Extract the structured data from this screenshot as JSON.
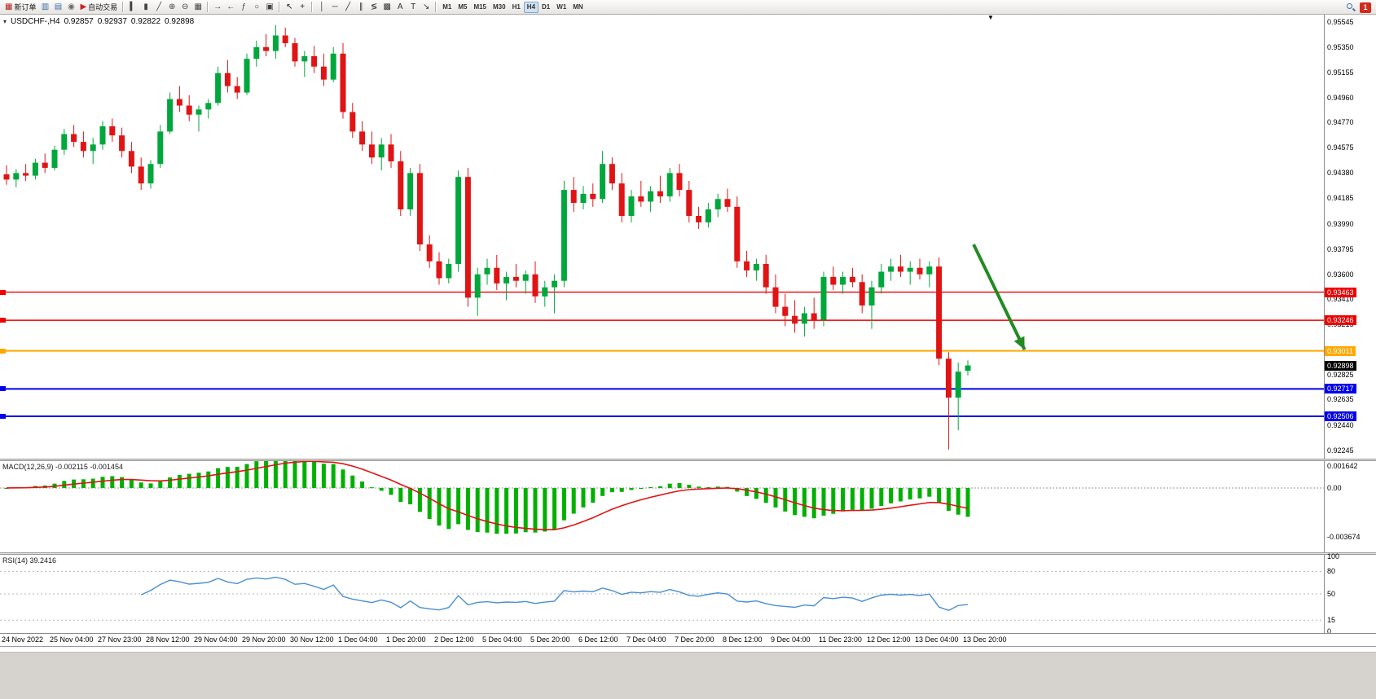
{
  "toolbar": {
    "groups": [
      {
        "items": [
          {
            "name": "new-order-button",
            "glyph": "▦",
            "glyph_color": "#b02020",
            "label": "新订单"
          },
          {
            "name": "new-chart-button",
            "glyph": "▥",
            "glyph_color": "#3a6ea5"
          },
          {
            "name": "profiles-button",
            "glyph": "▤",
            "glyph_color": "#3a6ea5"
          },
          {
            "name": "alerts-button",
            "glyph": "◉",
            "glyph_color": "#6a6a6a"
          },
          {
            "name": "autotrade-button",
            "glyph": "▶",
            "glyph_color": "#cc2222",
            "label": "自动交易"
          }
        ]
      },
      {
        "items": [
          {
            "name": "bar-chart-button",
            "glyph": "▍",
            "glyph_color": "#444"
          },
          {
            "name": "candlestick-chart-button",
            "glyph": "▮",
            "glyph_color": "#444"
          },
          {
            "name": "line-chart-button",
            "glyph": "╱",
            "glyph_color": "#444"
          },
          {
            "name": "zoom-in-button",
            "glyph": "⊕",
            "glyph_color": "#444"
          },
          {
            "name": "zoom-out-button",
            "glyph": "⊖",
            "glyph_color": "#444"
          },
          {
            "name": "tile-windows-button",
            "glyph": "▦",
            "glyph_color": "#444"
          }
        ]
      },
      {
        "items": [
          {
            "name": "auto-scroll-button",
            "glyph": "→",
            "glyph_color": "#444"
          },
          {
            "name": "chart-shift-button",
            "glyph": "←",
            "glyph_color": "#444"
          },
          {
            "name": "indicators-button",
            "glyph": "ƒ",
            "glyph_color": "#444"
          },
          {
            "name": "periods-dropdown",
            "glyph": "○",
            "glyph_color": "#444"
          },
          {
            "name": "templates-dropdown",
            "glyph": "▣",
            "glyph_color": "#444"
          }
        ]
      },
      {
        "items": [
          {
            "name": "cursor-tool",
            "glyph": "↖",
            "glyph_color": "#222"
          },
          {
            "name": "crosshair-tool",
            "glyph": "+",
            "glyph_color": "#222"
          }
        ]
      },
      {
        "items": [
          {
            "name": "vertical-line-tool",
            "glyph": "│",
            "glyph_color": "#333"
          },
          {
            "name": "horizontal-line-tool",
            "glyph": "─",
            "glyph_color": "#333"
          },
          {
            "name": "trendline-tool",
            "glyph": "╱",
            "glyph_color": "#333"
          },
          {
            "name": "channel-tool",
            "glyph": "∥",
            "glyph_color": "#333"
          },
          {
            "name": "fibonacci-tool",
            "glyph": "≶",
            "glyph_color": "#333"
          },
          {
            "name": "grid-tool",
            "glyph": "▩",
            "glyph_color": "#333"
          },
          {
            "name": "text-tool",
            "glyph": "A",
            "glyph_color": "#333"
          },
          {
            "name": "text-label-tool",
            "glyph": "T",
            "glyph_color": "#333"
          },
          {
            "name": "arrows-tool",
            "glyph": "↘",
            "glyph_color": "#333"
          }
        ]
      }
    ],
    "timeframes": {
      "items": [
        "M1",
        "M5",
        "M15",
        "M30",
        "H1",
        "H4",
        "D1",
        "W1",
        "MN"
      ],
      "active": "H4"
    },
    "notification_badge": "1"
  },
  "chart": {
    "collapse_icon": "▾",
    "symbol_label": "USDCHF-,H4",
    "ohlc": {
      "open": "0.92857",
      "high": "0.92937",
      "low": "0.92822",
      "close": "0.92898"
    },
    "price_axis_ticks": [
      "0.95545",
      "0.95350",
      "0.95155",
      "0.94960",
      "0.94770",
      "0.94575",
      "0.94380",
      "0.94185",
      "0.93990",
      "0.93795",
      "0.93600",
      "0.93410",
      "0.93215",
      "0.92825",
      "0.92635",
      "0.92440",
      "0.92245"
    ],
    "levels": [
      {
        "value": 0.93463,
        "label": "0.93463",
        "color": "#ee0000",
        "width": 1.4
      },
      {
        "value": 0.93246,
        "label": "0.93246",
        "color": "#ee0000",
        "width": 1.4
      },
      {
        "value": 0.93011,
        "label": "0.93011",
        "color": "#ffa800",
        "width": 2
      },
      {
        "value": 0.92717,
        "label": "0.92717",
        "color": "#0000ee",
        "width": 2
      },
      {
        "value": 0.92506,
        "label": "0.92506",
        "color": "#0000ee",
        "width": 2
      }
    ],
    "current_price_tag": {
      "text": "0.92898",
      "color": "#000000",
      "value": 0.92898
    },
    "shift_marker": "▼",
    "arrow": {
      "from_index": 100.6,
      "from_price": 0.9383,
      "to_index": 105.9,
      "to_price": 0.9302,
      "color": "#228b22"
    },
    "label_every": 5,
    "time_labels": [
      "24 Nov 2022",
      "25 Nov 04:00",
      "27 Nov 23:00",
      "28 Nov 12:00",
      "29 Nov 04:00",
      "29 Nov 20:00",
      "30 Nov 12:00",
      "1 Dec 04:00",
      "1 Dec 20:00",
      "2 Dec 12:00",
      "5 Dec 04:00",
      "5 Dec 20:00",
      "6 Dec 12:00",
      "7 Dec 04:00",
      "7 Dec 20:00",
      "8 Dec 12:00",
      "9 Dec 04:00",
      "11 Dec 23:00",
      "12 Dec 12:00",
      "13 Dec 04:00",
      "13 Dec 20:00"
    ]
  },
  "macd": {
    "label": "MACD(12,26,9)",
    "values_text": "-0.002115 -0.001454",
    "ticks": [
      {
        "v": 0.001642,
        "t": "0.001642"
      },
      {
        "v": 0,
        "t": "0.00"
      },
      {
        "v": -0.003674,
        "t": "-0.003674"
      }
    ],
    "histogram_color": "#00b000",
    "signal_color": "#e01414"
  },
  "rsi": {
    "label": "RSI(14)",
    "value_text": "39.2416",
    "ticks": [
      {
        "v": 100,
        "t": "100"
      },
      {
        "v": 80,
        "t": "80"
      },
      {
        "v": 50,
        "t": "50"
      },
      {
        "v": 15,
        "t": "15"
      },
      {
        "v": 0,
        "t": "0"
      }
    ],
    "dashed_levels": [
      80,
      50,
      15
    ],
    "line_color": "#4a8fd0"
  },
  "chart_data": {
    "type": "candlestick",
    "symbol": "USDCHF",
    "timeframe": "H4",
    "up_color": "#00a73c",
    "down_color": "#e01414",
    "price_range": {
      "max": 0.956,
      "min": 0.9218
    },
    "indicators": [
      {
        "name": "MACD",
        "params": [
          12,
          26,
          9
        ],
        "display_values": [
          -0.002115,
          -0.001454
        ]
      },
      {
        "name": "RSI",
        "params": [
          14
        ],
        "display_value": 39.2416
      }
    ],
    "candles": [
      [
        0.9437,
        0.9444,
        0.9429,
        0.9433
      ],
      [
        0.9433,
        0.9441,
        0.9427,
        0.9438
      ],
      [
        0.9438,
        0.9445,
        0.9432,
        0.9436
      ],
      [
        0.9436,
        0.9449,
        0.9433,
        0.9446
      ],
      [
        0.9446,
        0.9453,
        0.9438,
        0.9442
      ],
      [
        0.9442,
        0.9459,
        0.944,
        0.9456
      ],
      [
        0.9456,
        0.9472,
        0.9452,
        0.9468
      ],
      [
        0.9468,
        0.9475,
        0.9458,
        0.9462
      ],
      [
        0.9462,
        0.947,
        0.945,
        0.9455
      ],
      [
        0.9455,
        0.9465,
        0.9445,
        0.946
      ],
      [
        0.946,
        0.9478,
        0.9456,
        0.9474
      ],
      [
        0.9474,
        0.948,
        0.9462,
        0.9467
      ],
      [
        0.9467,
        0.9473,
        0.945,
        0.9455
      ],
      [
        0.9455,
        0.9462,
        0.9438,
        0.9443
      ],
      [
        0.9443,
        0.945,
        0.9425,
        0.943
      ],
      [
        0.943,
        0.9448,
        0.9426,
        0.9445
      ],
      [
        0.9445,
        0.9475,
        0.9442,
        0.947
      ],
      [
        0.947,
        0.95,
        0.9468,
        0.9495
      ],
      [
        0.9495,
        0.9505,
        0.9485,
        0.949
      ],
      [
        0.949,
        0.9498,
        0.9478,
        0.9483
      ],
      [
        0.9483,
        0.949,
        0.947,
        0.9487
      ],
      [
        0.9487,
        0.9495,
        0.948,
        0.9492
      ],
      [
        0.9492,
        0.952,
        0.949,
        0.9515
      ],
      [
        0.9515,
        0.9525,
        0.95,
        0.9505
      ],
      [
        0.9505,
        0.9512,
        0.9495,
        0.95
      ],
      [
        0.95,
        0.953,
        0.9498,
        0.9526
      ],
      [
        0.9526,
        0.954,
        0.952,
        0.9535
      ],
      [
        0.9535,
        0.9545,
        0.9528,
        0.9532
      ],
      [
        0.9532,
        0.9552,
        0.9526,
        0.9544
      ],
      [
        0.9544,
        0.955,
        0.9535,
        0.9538
      ],
      [
        0.9538,
        0.9542,
        0.952,
        0.9524
      ],
      [
        0.9524,
        0.9532,
        0.9512,
        0.9528
      ],
      [
        0.9528,
        0.9536,
        0.9515,
        0.952
      ],
      [
        0.952,
        0.953,
        0.9505,
        0.951
      ],
      [
        0.951,
        0.9535,
        0.9508,
        0.953
      ],
      [
        0.953,
        0.9538,
        0.948,
        0.9485
      ],
      [
        0.9485,
        0.9492,
        0.9465,
        0.947
      ],
      [
        0.947,
        0.9478,
        0.9455,
        0.946
      ],
      [
        0.946,
        0.947,
        0.9445,
        0.945
      ],
      [
        0.945,
        0.9465,
        0.944,
        0.946
      ],
      [
        0.946,
        0.9468,
        0.9442,
        0.9447
      ],
      [
        0.9447,
        0.9455,
        0.9405,
        0.941
      ],
      [
        0.941,
        0.9442,
        0.9405,
        0.9438
      ],
      [
        0.9438,
        0.9445,
        0.9378,
        0.9383
      ],
      [
        0.9383,
        0.939,
        0.9365,
        0.937
      ],
      [
        0.937,
        0.9377,
        0.9352,
        0.9357
      ],
      [
        0.9357,
        0.9372,
        0.9353,
        0.9368
      ],
      [
        0.9368,
        0.944,
        0.9362,
        0.9435
      ],
      [
        0.9435,
        0.9442,
        0.9335,
        0.9342
      ],
      [
        0.9342,
        0.9365,
        0.9328,
        0.936
      ],
      [
        0.936,
        0.9372,
        0.9352,
        0.9365
      ],
      [
        0.9365,
        0.9375,
        0.9348,
        0.9353
      ],
      [
        0.9353,
        0.9362,
        0.934,
        0.9358
      ],
      [
        0.9358,
        0.9368,
        0.935,
        0.9355
      ],
      [
        0.9355,
        0.9363,
        0.9345,
        0.936
      ],
      [
        0.936,
        0.937,
        0.9338,
        0.9343
      ],
      [
        0.9343,
        0.9355,
        0.9335,
        0.935
      ],
      [
        0.935,
        0.936,
        0.933,
        0.9355
      ],
      [
        0.9355,
        0.9432,
        0.935,
        0.9425
      ],
      [
        0.9425,
        0.9435,
        0.9408,
        0.9415
      ],
      [
        0.9415,
        0.9428,
        0.941,
        0.9422
      ],
      [
        0.9422,
        0.943,
        0.9412,
        0.9418
      ],
      [
        0.9418,
        0.9455,
        0.9415,
        0.9445
      ],
      [
        0.9445,
        0.945,
        0.9425,
        0.943
      ],
      [
        0.943,
        0.9438,
        0.94,
        0.9405
      ],
      [
        0.9405,
        0.9425,
        0.94,
        0.942
      ],
      [
        0.942,
        0.9432,
        0.9412,
        0.9416
      ],
      [
        0.9416,
        0.9428,
        0.9408,
        0.9424
      ],
      [
        0.9424,
        0.9436,
        0.9415,
        0.942
      ],
      [
        0.942,
        0.9442,
        0.9416,
        0.9438
      ],
      [
        0.9438,
        0.9445,
        0.942,
        0.9425
      ],
      [
        0.9425,
        0.9432,
        0.94,
        0.9405
      ],
      [
        0.9405,
        0.9412,
        0.9395,
        0.94
      ],
      [
        0.94,
        0.9415,
        0.9396,
        0.941
      ],
      [
        0.941,
        0.9422,
        0.9404,
        0.9418
      ],
      [
        0.9418,
        0.9426,
        0.9408,
        0.9412
      ],
      [
        0.9412,
        0.942,
        0.9365,
        0.937
      ],
      [
        0.937,
        0.9378,
        0.9358,
        0.9363
      ],
      [
        0.9363,
        0.9372,
        0.9355,
        0.9368
      ],
      [
        0.9368,
        0.9375,
        0.9345,
        0.935
      ],
      [
        0.935,
        0.936,
        0.933,
        0.9335
      ],
      [
        0.9335,
        0.9345,
        0.932,
        0.9328
      ],
      [
        0.9328,
        0.934,
        0.9315,
        0.9322
      ],
      [
        0.9322,
        0.9335,
        0.9312,
        0.933
      ],
      [
        0.933,
        0.9342,
        0.9318,
        0.9325
      ],
      [
        0.9325,
        0.9362,
        0.932,
        0.9358
      ],
      [
        0.9358,
        0.9366,
        0.9348,
        0.9352
      ],
      [
        0.9352,
        0.9362,
        0.9345,
        0.9358
      ],
      [
        0.9358,
        0.9365,
        0.935,
        0.9354
      ],
      [
        0.9354,
        0.936,
        0.933,
        0.9336
      ],
      [
        0.9336,
        0.9355,
        0.9318,
        0.935
      ],
      [
        0.935,
        0.9368,
        0.9345,
        0.9362
      ],
      [
        0.9362,
        0.9372,
        0.9355,
        0.9366
      ],
      [
        0.9366,
        0.9375,
        0.9358,
        0.9362
      ],
      [
        0.9362,
        0.937,
        0.9352,
        0.9365
      ],
      [
        0.9365,
        0.9372,
        0.9356,
        0.936
      ],
      [
        0.936,
        0.937,
        0.935,
        0.9366
      ],
      [
        0.9366,
        0.9373,
        0.929,
        0.9295
      ],
      [
        0.9295,
        0.93,
        0.9225,
        0.9265
      ],
      [
        0.9265,
        0.9292,
        0.924,
        0.9285
      ],
      [
        0.92857,
        0.92937,
        0.92822,
        0.92898
      ]
    ]
  }
}
